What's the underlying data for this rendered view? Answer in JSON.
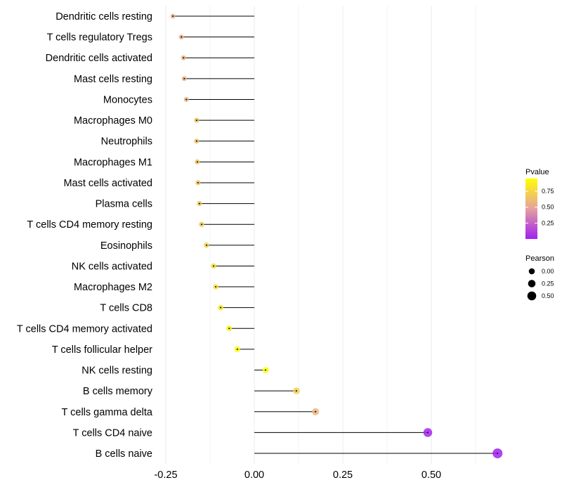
{
  "chart_data": {
    "type": "lollipop",
    "title": "",
    "xlabel": "",
    "ylabel": "",
    "xlim": [
      -0.27,
      0.74
    ],
    "x_ticks": [
      -0.25,
      0.0,
      0.25,
      0.5
    ],
    "x_tick_labels": [
      "-0.25",
      "0.00",
      "0.25",
      "0.50"
    ],
    "grid": true,
    "categories": [
      "Dendritic cells resting",
      "T cells regulatory  Tregs ",
      "Dendritic cells activated",
      "Mast cells resting",
      "Monocytes",
      "Macrophages M0",
      "Neutrophils",
      "Macrophages M1",
      "Mast cells activated",
      "Plasma cells",
      "T cells CD4 memory resting",
      "Eosinophils",
      "NK cells activated",
      "Macrophages M2",
      "T cells CD8",
      "T cells CD4 memory activated",
      "T cells follicular helper",
      "NK cells resting",
      "B cells memory",
      "T cells gamma delta",
      "T cells CD4 naive",
      "B cells naive"
    ],
    "values": [
      -0.23,
      -0.206,
      -0.2,
      -0.198,
      -0.192,
      -0.163,
      -0.163,
      -0.161,
      -0.159,
      -0.155,
      -0.149,
      -0.135,
      -0.115,
      -0.109,
      -0.095,
      -0.071,
      -0.048,
      0.032,
      0.119,
      0.173,
      0.49,
      0.687
    ],
    "pvalues": [
      0.52,
      0.55,
      0.56,
      0.56,
      0.57,
      0.65,
      0.65,
      0.65,
      0.66,
      0.67,
      0.69,
      0.72,
      0.78,
      0.79,
      0.82,
      0.88,
      0.92,
      0.97,
      0.7,
      0.58,
      0.02,
      0.01
    ],
    "legend": {
      "position": "right",
      "color_title": "Pvalue",
      "color_ticks": [
        0.75,
        0.5,
        0.25
      ],
      "color_tick_labels": [
        "0.75",
        "0.50",
        "0.25"
      ],
      "color_range": [
        0.0,
        0.95
      ],
      "colors": [
        "#a020f0",
        "#e6a0a0",
        "#ffff00"
      ],
      "size_title": "Pearson",
      "size_ticks": [
        0.0,
        0.25,
        0.5
      ],
      "size_tick_labels": [
        "0.00",
        "0.25",
        "0.50"
      ]
    }
  }
}
